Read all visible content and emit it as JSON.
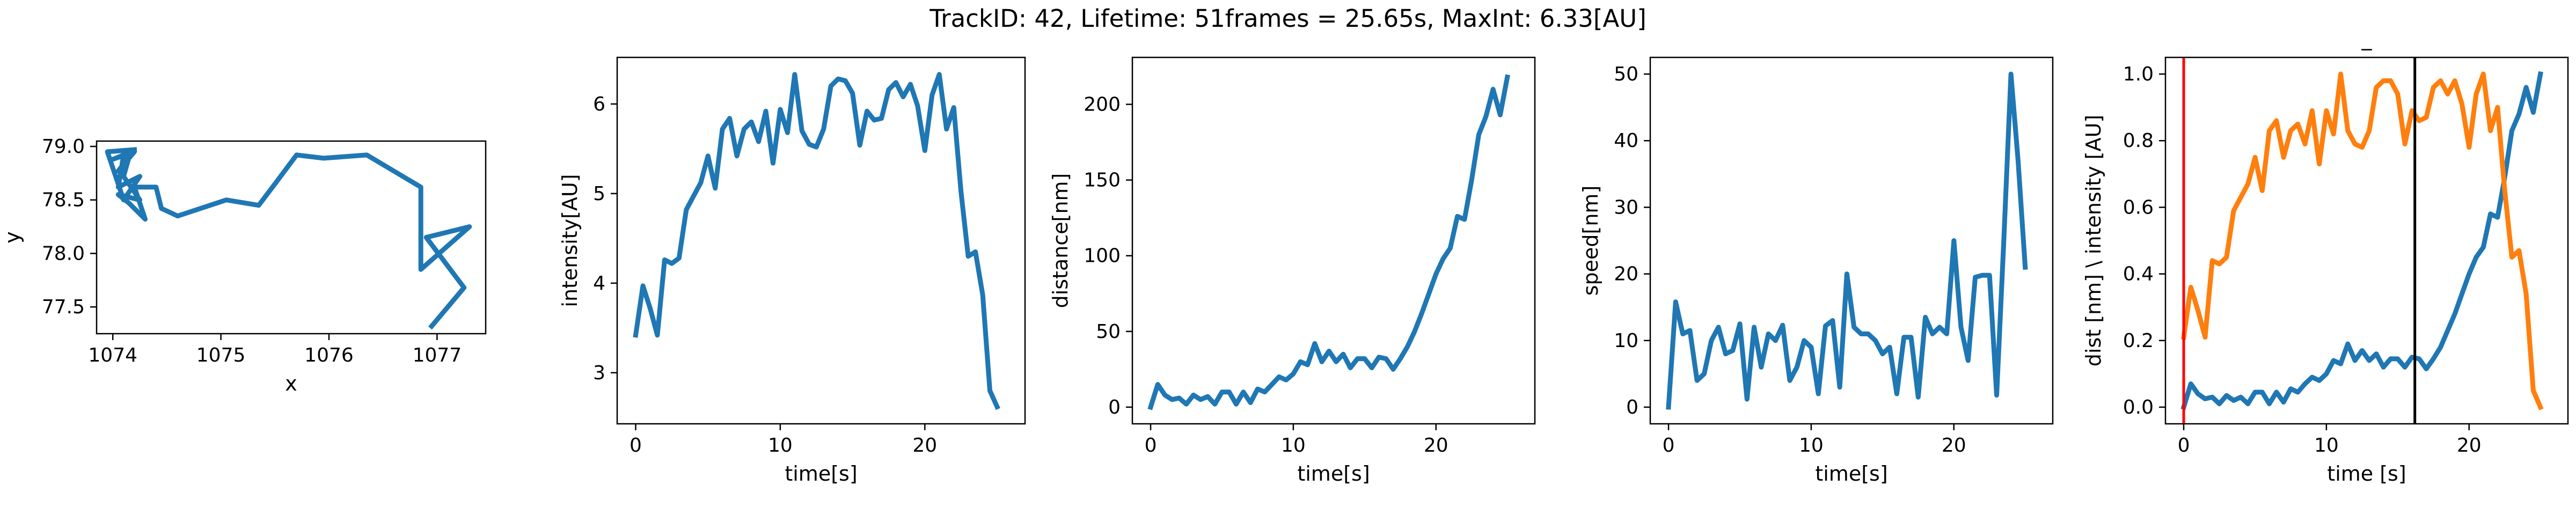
{
  "figure": {
    "title": "TrackID: 42, Lifetime: 51frames = 25.65s, MaxInt: 6.33[AU]"
  },
  "colors": {
    "blue": "#1f77b4",
    "orange": "#ff7f0e",
    "red": "#ff0000",
    "black": "#000000"
  },
  "chart_data": [
    {
      "type": "line",
      "name": "trajectory",
      "title": "",
      "xlabel": "x",
      "ylabel": "y",
      "xlim": [
        1073.85,
        1077.45
      ],
      "ylim": [
        77.25,
        79.05
      ],
      "xticks": [
        1074,
        1075,
        1076,
        1077
      ],
      "yticks": [
        77.5,
        78.0,
        78.5,
        79.0
      ],
      "series": [
        {
          "color": "#1f77b4",
          "x": [
            1076.95,
            1077.25,
            1076.9,
            1077.3,
            1076.85,
            1076.85,
            1076.35,
            1075.95,
            1075.7,
            1075.5,
            1075.35,
            1075.05,
            1074.6,
            1074.45,
            1074.4,
            1074.2,
            1074.3,
            1074.15,
            1074.05,
            1074.25,
            1074.1,
            1074.15,
            1074.05,
            1074.2,
            1074.0,
            1074.1,
            1074.05,
            1074.25,
            1074.1,
            1073.95,
            1074.2
          ],
          "y": [
            77.32,
            77.68,
            78.15,
            78.25,
            77.85,
            78.62,
            78.92,
            78.89,
            78.92,
            78.65,
            78.45,
            78.5,
            78.35,
            78.42,
            78.62,
            78.62,
            78.32,
            78.47,
            78.55,
            78.5,
            78.72,
            78.9,
            78.77,
            78.95,
            78.88,
            78.92,
            78.62,
            78.72,
            78.5,
            78.95,
            78.97
          ]
        }
      ]
    },
    {
      "type": "line",
      "name": "intensity",
      "title": "",
      "xlabel": "time[s]",
      "ylabel": "intensity[AU]",
      "xlim": [
        -1.28,
        26.93
      ],
      "ylim": [
        2.43,
        6.52
      ],
      "xticks": [
        0,
        10,
        20
      ],
      "yticks": [
        3,
        4,
        5,
        6
      ],
      "series": [
        {
          "color": "#1f77b4",
          "x": [
            0,
            0.5,
            1,
            1.5,
            2,
            2.5,
            3,
            3.5,
            4,
            4.5,
            5,
            5.5,
            6,
            6.5,
            7,
            7.5,
            8,
            8.5,
            9,
            9.5,
            10,
            10.5,
            11,
            11.5,
            12,
            12.5,
            13,
            13.5,
            14,
            14.5,
            15,
            15.5,
            16,
            16.5,
            17,
            17.5,
            18,
            18.5,
            19,
            19.5,
            20,
            20.5,
            21,
            21.5,
            22,
            22.5,
            23,
            23.5,
            24,
            24.5,
            25
          ],
          "y": [
            3.42,
            3.97,
            3.72,
            3.42,
            4.26,
            4.22,
            4.28,
            4.82,
            4.97,
            5.12,
            5.42,
            5.06,
            5.72,
            5.84,
            5.42,
            5.72,
            5.8,
            5.58,
            5.92,
            5.34,
            5.94,
            5.68,
            6.33,
            5.7,
            5.55,
            5.52,
            5.72,
            6.2,
            6.28,
            6.26,
            6.12,
            5.54,
            5.92,
            5.82,
            5.84,
            6.16,
            6.24,
            6.08,
            6.22,
            5.98,
            5.48,
            6.1,
            6.33,
            5.72,
            5.96,
            5.02,
            4.3,
            4.35,
            3.87,
            2.8,
            2.62
          ]
        }
      ]
    },
    {
      "type": "line",
      "name": "distance",
      "title": "",
      "xlabel": "time[s]",
      "ylabel": "distance[nm]",
      "xlim": [
        -1.28,
        26.93
      ],
      "ylim": [
        -11,
        231
      ],
      "xticks": [
        0,
        10,
        20
      ],
      "yticks": [
        0,
        50,
        100,
        150,
        200
      ],
      "series": [
        {
          "color": "#1f77b4",
          "x": [
            0,
            0.5,
            1,
            1.5,
            2,
            2.5,
            3,
            3.5,
            4,
            4.5,
            5,
            5.5,
            6,
            6.5,
            7,
            7.5,
            8,
            8.5,
            9,
            9.5,
            10,
            10.5,
            11,
            11.5,
            12,
            12.5,
            13,
            13.5,
            14,
            14.5,
            15,
            15.5,
            16,
            16.5,
            17,
            17.5,
            18,
            18.5,
            19,
            19.5,
            20,
            20.5,
            21,
            21.5,
            22,
            22.5,
            23,
            23.5,
            24,
            24.5,
            25
          ],
          "y": [
            0,
            15,
            8,
            5,
            6,
            2,
            8,
            5,
            7,
            2,
            10,
            10,
            2,
            10,
            3,
            12,
            10,
            15,
            20,
            18,
            22,
            30,
            28,
            42,
            30,
            37,
            30,
            35,
            26,
            32,
            32,
            26,
            33,
            32,
            25,
            32,
            40,
            50,
            62,
            75,
            88,
            98,
            105,
            126,
            124,
            150,
            180,
            192,
            210,
            193,
            218
          ]
        }
      ]
    },
    {
      "type": "line",
      "name": "speed",
      "title": "",
      "xlabel": "time[s]",
      "ylabel": "speed[nm]",
      "xlim": [
        -1.28,
        26.93
      ],
      "ylim": [
        -2.5,
        52.5
      ],
      "xticks": [
        0,
        10,
        20
      ],
      "yticks": [
        0,
        10,
        20,
        30,
        40,
        50
      ],
      "series": [
        {
          "color": "#1f77b4",
          "x": [
            0,
            0.5,
            1,
            1.5,
            2,
            2.5,
            3,
            3.5,
            4,
            4.5,
            5,
            5.5,
            6,
            6.5,
            7,
            7.5,
            8,
            8.5,
            9,
            9.5,
            10,
            10.5,
            11,
            11.5,
            12,
            12.5,
            13,
            13.5,
            14,
            14.5,
            15,
            15.5,
            16,
            16.5,
            17,
            17.5,
            18,
            18.5,
            19,
            19.5,
            20,
            20.5,
            21,
            21.5,
            22,
            22.5,
            23,
            23.5,
            24,
            24.5,
            25
          ],
          "y": [
            0,
            15.8,
            11,
            11.5,
            4,
            5,
            10,
            12,
            8,
            8.5,
            12.5,
            1.2,
            12,
            6,
            11,
            10,
            12.3,
            4,
            6,
            10,
            9,
            2,
            12.2,
            13,
            3,
            20,
            12,
            11,
            11,
            10,
            8,
            9,
            2,
            10.5,
            10.5,
            1.5,
            13.5,
            11,
            12,
            11,
            25,
            12,
            7,
            19.5,
            19.8,
            19.8,
            1.8,
            25,
            50,
            37,
            21
          ]
        }
      ]
    },
    {
      "type": "line",
      "name": "normalized",
      "title": "_",
      "xlabel": "time [s]",
      "ylabel": "dist [nm] \\ intensity [AU]",
      "xlim": [
        -1.28,
        26.93
      ],
      "ylim": [
        -0.05,
        1.05
      ],
      "xticks": [
        0,
        10,
        20
      ],
      "yticks": [
        0.0,
        0.2,
        0.4,
        0.6,
        0.8,
        1.0
      ],
      "vlines": [
        {
          "x": 0,
          "color": "#ff0000"
        },
        {
          "x": 16.2,
          "color": "#000000"
        }
      ],
      "series": [
        {
          "color": "#1f77b4",
          "x": [
            0,
            0.5,
            1,
            1.5,
            2,
            2.5,
            3,
            3.5,
            4,
            4.5,
            5,
            5.5,
            6,
            6.5,
            7,
            7.5,
            8,
            8.5,
            9,
            9.5,
            10,
            10.5,
            11,
            11.5,
            12,
            12.5,
            13,
            13.5,
            14,
            14.5,
            15,
            15.5,
            16,
            16.5,
            17,
            17.5,
            18,
            18.5,
            19,
            19.5,
            20,
            20.5,
            21,
            21.5,
            22,
            22.5,
            23,
            23.5,
            24,
            24.5,
            25
          ],
          "y": [
            0,
            0.07,
            0.04,
            0.025,
            0.03,
            0.01,
            0.035,
            0.02,
            0.03,
            0.01,
            0.045,
            0.045,
            0.01,
            0.045,
            0.015,
            0.055,
            0.045,
            0.07,
            0.09,
            0.08,
            0.1,
            0.14,
            0.13,
            0.19,
            0.14,
            0.17,
            0.14,
            0.16,
            0.12,
            0.145,
            0.145,
            0.12,
            0.15,
            0.145,
            0.115,
            0.145,
            0.18,
            0.23,
            0.28,
            0.34,
            0.4,
            0.45,
            0.48,
            0.58,
            0.57,
            0.69,
            0.83,
            0.88,
            0.96,
            0.885,
            1.0
          ]
        },
        {
          "color": "#ff7f0e",
          "x": [
            0,
            0.5,
            1,
            1.5,
            2,
            2.5,
            3,
            3.5,
            4,
            4.5,
            5,
            5.5,
            6,
            6.5,
            7,
            7.5,
            8,
            8.5,
            9,
            9.5,
            10,
            10.5,
            11,
            11.5,
            12,
            12.5,
            13,
            13.5,
            14,
            14.5,
            15,
            15.5,
            16,
            16.5,
            17,
            17.5,
            18,
            18.5,
            19,
            19.5,
            20,
            20.5,
            21,
            21.5,
            22,
            22.5,
            23,
            23.5,
            24,
            24.5,
            25
          ],
          "y": [
            0.21,
            0.36,
            0.29,
            0.21,
            0.44,
            0.43,
            0.45,
            0.59,
            0.63,
            0.67,
            0.75,
            0.65,
            0.83,
            0.86,
            0.75,
            0.83,
            0.85,
            0.79,
            0.89,
            0.73,
            0.89,
            0.82,
            1.0,
            0.83,
            0.79,
            0.78,
            0.83,
            0.96,
            0.98,
            0.98,
            0.94,
            0.79,
            0.89,
            0.86,
            0.87,
            0.96,
            0.98,
            0.94,
            0.98,
            0.91,
            0.78,
            0.94,
            1.0,
            0.83,
            0.9,
            0.65,
            0.45,
            0.47,
            0.34,
            0.05,
            0.0
          ]
        }
      ]
    }
  ]
}
